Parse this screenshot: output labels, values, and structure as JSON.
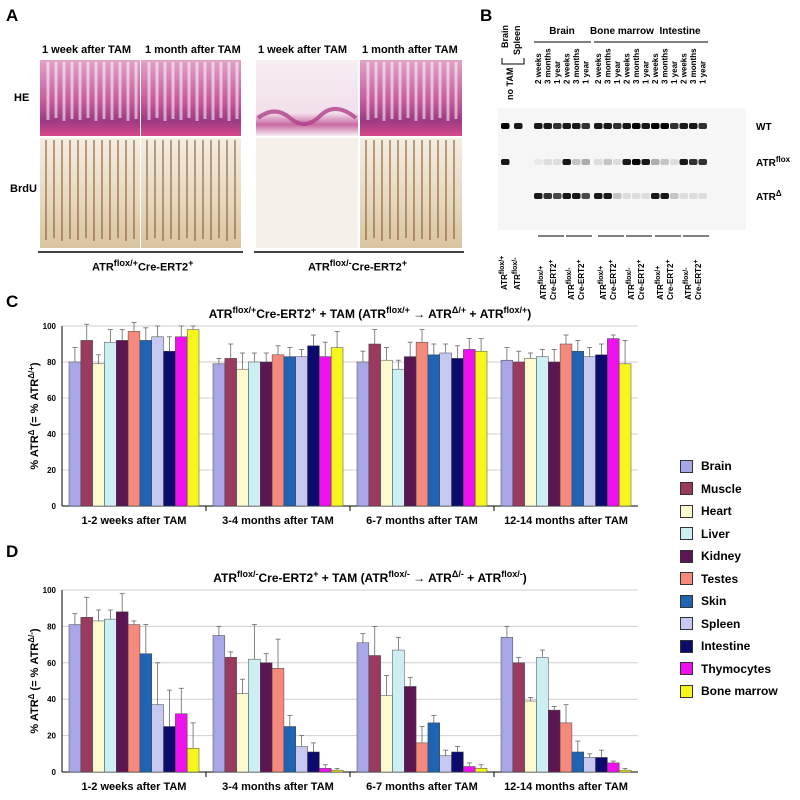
{
  "panels": {
    "a": "A",
    "b": "B",
    "c": "C",
    "d": "D"
  },
  "panel_a": {
    "col_labels": [
      "1 week after TAM",
      "1 month after TAM",
      "1 week after TAM",
      "1 month after TAM"
    ],
    "row_labels": [
      "HE",
      "BrdU"
    ],
    "genotype_left": {
      "base": "ATR",
      "sup": "flox/+",
      "tail": "Cre-ERT2",
      "tail_sup": "+"
    },
    "genotype_right": {
      "base": "ATR",
      "sup": "flox/-",
      "tail": "Cre-ERT2",
      "tail_sup": "+"
    }
  },
  "panel_b": {
    "brain_spleen": [
      "Brain",
      "Spleen"
    ],
    "no_tam": "no TAM",
    "group_labels": [
      "Brain",
      "Bone marrow",
      "Intestine"
    ],
    "time_labels": [
      "2 weeks",
      "3 months",
      "1 year",
      "2 weeks",
      "3 months",
      "1 year"
    ],
    "band_labels": {
      "wt": "WT",
      "flox_base": "ATR",
      "flox_sup": "flox",
      "del_base": "ATR",
      "del_sup": "Δ"
    },
    "genotypes": [
      {
        "base": "ATR",
        "sup": "flox/+"
      },
      {
        "base": "ATR",
        "sup": "flox/-"
      },
      {
        "base": "ATR",
        "sup": "flox/+",
        "tail": "Cre-ERT2",
        "tail_sup": "+"
      },
      {
        "base": "ATR",
        "sup": "flox/-",
        "tail": "Cre-ERT2",
        "tail_sup": "+"
      }
    ]
  },
  "legend": {
    "items": [
      {
        "label": "Brain",
        "color": "#a7a7e8"
      },
      {
        "label": "Muscle",
        "color": "#9b3a5f"
      },
      {
        "label": "Heart",
        "color": "#fbfbcf"
      },
      {
        "label": "Liver",
        "color": "#cdeff4"
      },
      {
        "label": "Kidney",
        "color": "#5b1553"
      },
      {
        "label": "Testes",
        "color": "#f58a7c"
      },
      {
        "label": "Skin",
        "color": "#1f63b3"
      },
      {
        "label": "Spleen",
        "color": "#c6c8f2"
      },
      {
        "label": "Intestine",
        "color": "#0b0b6e"
      },
      {
        "label": "Thymocytes",
        "color": "#ee11ee"
      },
      {
        "label": "Bone marrow",
        "color": "#f6f61a"
      }
    ]
  },
  "chart_data": [
    {
      "type": "bar",
      "panel": "C",
      "title": {
        "part1_base": "ATR",
        "part1_sup": "flox/+",
        "part1_tail": "Cre-ERT2",
        "part1_tail_sup": "+",
        "plus_tam": " + TAM ",
        "paren_base": "(ATR",
        "paren_sup": "flox/+",
        "res_base": "ATR",
        "res_sup": "Δ/+",
        "res_mid": " + ATR",
        "res_sup2": "flox/+",
        "res_end": ")"
      },
      "ylabel": {
        "a": "% ATR",
        "a_sup": "Δ",
        "b": " (= % ATR",
        "b_sup": "Δ/+",
        "c": ")"
      },
      "ylim": [
        0,
        100
      ],
      "yticks": [
        0,
        20,
        40,
        60,
        80,
        100
      ],
      "categories": [
        "1-2 weeks after TAM",
        "3-4 months after TAM",
        "6-7 months after TAM",
        "12-14 months after TAM"
      ],
      "series": [
        {
          "name": "Brain",
          "values": [
            80,
            79,
            80,
            81
          ],
          "errors": [
            8,
            3,
            6,
            7
          ]
        },
        {
          "name": "Muscle",
          "values": [
            92,
            82,
            90,
            80
          ],
          "errors": [
            9,
            8,
            8,
            6
          ]
        },
        {
          "name": "Heart",
          "values": [
            79,
            76,
            81,
            82
          ],
          "errors": [
            5,
            9,
            7,
            3
          ]
        },
        {
          "name": "Liver",
          "values": [
            91,
            80,
            76,
            83
          ],
          "errors": [
            7,
            5,
            5,
            4
          ]
        },
        {
          "name": "Kidney",
          "values": [
            92,
            80,
            83,
            80
          ],
          "errors": [
            6,
            5,
            8,
            7
          ]
        },
        {
          "name": "Testes",
          "values": [
            97,
            84,
            91,
            90
          ],
          "errors": [
            5,
            5,
            7,
            5
          ]
        },
        {
          "name": "Skin",
          "values": [
            92,
            83,
            84,
            86
          ],
          "errors": [
            7,
            5,
            6,
            6
          ]
        },
        {
          "name": "Spleen",
          "values": [
            94,
            83,
            85,
            83
          ],
          "errors": [
            6,
            4,
            5,
            5
          ]
        },
        {
          "name": "Intestine",
          "values": [
            86,
            89,
            82,
            84
          ],
          "errors": [
            8,
            6,
            7,
            6
          ]
        },
        {
          "name": "Thymocytes",
          "values": [
            94,
            83,
            87,
            93
          ],
          "errors": [
            6,
            8,
            6,
            2
          ]
        },
        {
          "name": "Bone marrow",
          "values": [
            98,
            88,
            86,
            79
          ],
          "errors": [
            2,
            9,
            7,
            13
          ]
        }
      ]
    },
    {
      "type": "bar",
      "panel": "D",
      "title": {
        "part1_base": "ATR",
        "part1_sup": "flox/-",
        "part1_tail": "Cre-ERT2",
        "part1_tail_sup": "+",
        "plus_tam": " + TAM ",
        "paren_base": "(ATR",
        "paren_sup": "flox/-",
        "res_base": "ATR",
        "res_sup": "Δ/-",
        "res_mid": " + ATR",
        "res_sup2": "flox/-",
        "res_end": ")"
      },
      "ylabel": {
        "a": "% ATR",
        "a_sup": "Δ",
        "b": " (= % ATR",
        "b_sup": "Δ/-",
        "c": ")"
      },
      "ylim": [
        0,
        100
      ],
      "yticks": [
        0,
        20,
        40,
        60,
        80,
        100
      ],
      "categories": [
        "1-2 weeks after TAM",
        "3-4 months after TAM",
        "6-7 months after TAM",
        "12-14 months after TAM"
      ],
      "series": [
        {
          "name": "Brain",
          "values": [
            81,
            75,
            71,
            74
          ],
          "errors": [
            6,
            5,
            5,
            6
          ]
        },
        {
          "name": "Muscle",
          "values": [
            85,
            63,
            64,
            60
          ],
          "errors": [
            11,
            3,
            16,
            3
          ]
        },
        {
          "name": "Heart",
          "values": [
            83,
            43,
            42,
            39
          ],
          "errors": [
            6,
            8,
            11,
            2
          ]
        },
        {
          "name": "Liver",
          "values": [
            84,
            62,
            67,
            63
          ],
          "errors": [
            5,
            19,
            7,
            4
          ]
        },
        {
          "name": "Kidney",
          "values": [
            88,
            60,
            47,
            34
          ],
          "errors": [
            10,
            5,
            5,
            2
          ]
        },
        {
          "name": "Testes",
          "values": [
            81,
            57,
            16,
            27
          ],
          "errors": [
            2,
            16,
            9,
            10
          ]
        },
        {
          "name": "Skin",
          "values": [
            65,
            25,
            27,
            11
          ],
          "errors": [
            16,
            6,
            4,
            6
          ]
        },
        {
          "name": "Spleen",
          "values": [
            37,
            14,
            9,
            8
          ],
          "errors": [
            23,
            6,
            3,
            2
          ]
        },
        {
          "name": "Intestine",
          "values": [
            25,
            11,
            11,
            8
          ],
          "errors": [
            20,
            5,
            3,
            4
          ]
        },
        {
          "name": "Thymocytes",
          "values": [
            32,
            2,
            3,
            5
          ],
          "errors": [
            14,
            2,
            2,
            1
          ]
        },
        {
          "name": "Bone marrow",
          "values": [
            13,
            1,
            2,
            1
          ],
          "errors": [
            14,
            1,
            2,
            1
          ]
        }
      ]
    }
  ]
}
